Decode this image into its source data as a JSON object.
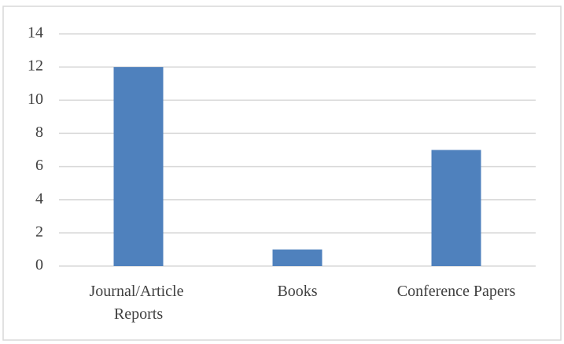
{
  "chart_data": {
    "type": "bar",
    "categories": [
      "Journal/Article Reports",
      "Books",
      "Conference Papers"
    ],
    "values": [
      12,
      1,
      7
    ],
    "color": "#4f81bd",
    "ylim": [
      0,
      14
    ],
    "yticks": [
      0,
      2,
      4,
      6,
      8,
      10,
      12,
      14
    ],
    "grid": true
  }
}
